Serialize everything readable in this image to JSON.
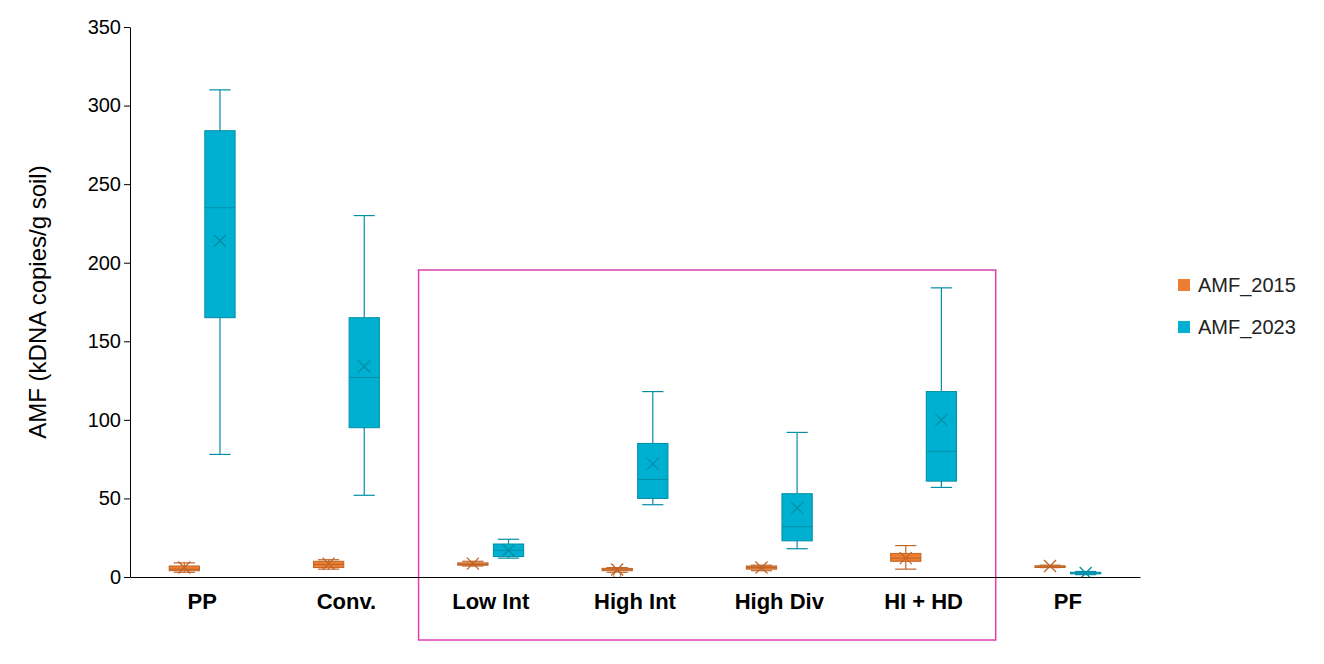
{
  "chart_data": {
    "type": "box",
    "y_label": "AMF (kDNA copies/g soil)",
    "categories": [
      "PP",
      "Conv.",
      "Low Int",
      "High Int",
      "High Div",
      "HI + HD",
      "PF"
    ],
    "ylim": [
      0,
      350
    ],
    "yticks": [
      0,
      50,
      100,
      150,
      200,
      250,
      300,
      350
    ],
    "grid": false,
    "legend": "right",
    "series": [
      {
        "name": "AMF_2015",
        "color": "#ed7d31",
        "min": [
          3,
          5,
          7,
          3,
          4,
          5,
          6
        ],
        "q1": [
          4,
          6,
          7.5,
          4,
          5,
          10,
          6.5
        ],
        "median": [
          5,
          8,
          8,
          5,
          6,
          12,
          7
        ],
        "q3": [
          7,
          10,
          9,
          5.5,
          7,
          15,
          7
        ],
        "max": [
          9,
          11,
          10,
          6,
          7.5,
          20,
          7.5
        ],
        "mean": [
          6,
          8.5,
          8.5,
          4.8,
          6,
          12,
          7
        ],
        "outliers": [
          [],
          [],
          [],
          [
            1
          ],
          [],
          [],
          []
        ]
      },
      {
        "name": "AMF_2023",
        "color": "#00b0d0",
        "min": [
          78,
          52,
          12,
          46,
          18,
          57,
          1.5
        ],
        "q1": [
          165,
          95,
          13,
          50,
          23,
          61,
          2
        ],
        "median": [
          235,
          127,
          17,
          62,
          32,
          80,
          2.5
        ],
        "q3": [
          284,
          165,
          21,
          85,
          53,
          118,
          3
        ],
        "max": [
          310,
          230,
          24,
          118,
          92,
          184,
          3.5
        ],
        "mean": [
          214,
          134,
          17,
          72,
          44,
          100,
          2.5
        ],
        "outliers": [
          [],
          [],
          [],
          [],
          [],
          [],
          []
        ]
      }
    ]
  }
}
